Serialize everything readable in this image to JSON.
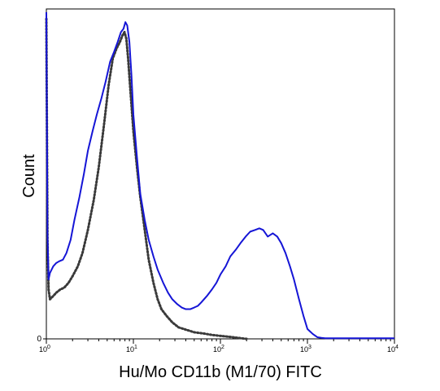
{
  "chart_data": {
    "type": "line",
    "title": "",
    "xlabel": "Hu/Mo CD11b (M1/70) FITC",
    "ylabel": "Count",
    "x_scale": "log",
    "xlim": [
      1,
      10000
    ],
    "ylim": [
      0,
      100
    ],
    "grid": false,
    "x_ticks": [
      {
        "value": 1,
        "base": "10",
        "exp": "0"
      },
      {
        "value": 10,
        "base": "10",
        "exp": "1"
      },
      {
        "value": 100,
        "base": "10",
        "exp": "2"
      },
      {
        "value": 1000,
        "base": "10",
        "exp": "3"
      },
      {
        "value": 10000,
        "base": "10",
        "exp": "4"
      }
    ],
    "y_ticks": [
      {
        "value": 0,
        "label": "0"
      }
    ],
    "series": [
      {
        "style": "dotted",
        "color": "#3a3a3a",
        "x": [
          1.0,
          1.03,
          1.06,
          1.1,
          1.15,
          1.2,
          1.3,
          1.45,
          1.6,
          1.8,
          2.0,
          2.3,
          2.6,
          3.0,
          3.5,
          4.0,
          4.6,
          5.2,
          5.8,
          6.4,
          7.0,
          7.5,
          7.9,
          8.3,
          8.7,
          9.2,
          10.0,
          11.0,
          12.0,
          13.5,
          15.0,
          17.0,
          19.0,
          21.0,
          24.0,
          28.0,
          33.0,
          40.0,
          50.0,
          65.0,
          80.0,
          100.0,
          130.0,
          160.0,
          200.0
        ],
        "y": [
          97.0,
          30.0,
          15.0,
          12.0,
          12.5,
          13.0,
          14.0,
          15.0,
          15.5,
          17.0,
          19.0,
          22.0,
          26.0,
          33.0,
          42.0,
          52.0,
          65.0,
          77.0,
          85.0,
          88.0,
          90.0,
          92.0,
          93.0,
          91.0,
          85.0,
          76.0,
          63.0,
          52.0,
          43.0,
          33.0,
          24.0,
          17.0,
          12.0,
          9.0,
          7.0,
          5.0,
          3.5,
          2.8,
          2.0,
          1.6,
          1.2,
          0.9,
          0.6,
          0.3,
          0.0
        ]
      },
      {
        "style": "solid",
        "color": "#1515d6",
        "x": [
          1.0,
          1.03,
          1.06,
          1.1,
          1.15,
          1.2,
          1.3,
          1.4,
          1.55,
          1.7,
          1.9,
          2.1,
          2.4,
          2.7,
          3.0,
          3.4,
          3.8,
          4.3,
          4.8,
          5.4,
          6.0,
          6.6,
          7.2,
          7.7,
          8.1,
          8.5,
          9.0,
          9.5,
          10.0,
          11.0,
          12.0,
          13.5,
          15.0,
          17.0,
          19.0,
          22.0,
          25.0,
          28.0,
          32.0,
          36.0,
          40.0,
          45.0,
          50.0,
          55.0,
          60.0,
          70.0,
          80.0,
          90.0,
          100.0,
          115.0,
          130.0,
          150.0,
          170.0,
          195.0,
          220.0,
          250.0,
          280.0,
          310.0,
          350.0,
          400.0,
          450.0,
          500.0,
          560.0,
          630.0,
          700.0,
          800.0,
          900.0,
          1000.0,
          1150.0,
          1300.0,
          1450.0,
          1600.0,
          1800.0,
          2200.0,
          3000.0,
          5000.0,
          10000.0
        ],
        "y": [
          99.0,
          32.0,
          18.0,
          20.0,
          21.0,
          22.0,
          23.0,
          23.5,
          24.0,
          26.0,
          30.0,
          36.0,
          43.0,
          50.0,
          57.0,
          63.0,
          68.0,
          73.0,
          78.0,
          84.0,
          87.0,
          90.0,
          93.0,
          94.0,
          96.0,
          95.0,
          90.0,
          80.0,
          68.0,
          55.0,
          44.0,
          36.0,
          30.0,
          25.0,
          21.0,
          17.0,
          14.0,
          12.0,
          10.5,
          9.5,
          9.0,
          9.0,
          9.5,
          10.0,
          11.0,
          13.0,
          15.0,
          17.0,
          19.5,
          22.0,
          25.0,
          27.0,
          29.0,
          31.0,
          32.5,
          33.0,
          33.5,
          33.0,
          31.0,
          32.0,
          31.0,
          29.0,
          26.0,
          22.0,
          18.0,
          12.0,
          7.0,
          3.0,
          1.5,
          0.5,
          0.3,
          0.2,
          0.2,
          0.2,
          0.2,
          0.2,
          0.2
        ]
      }
    ]
  }
}
